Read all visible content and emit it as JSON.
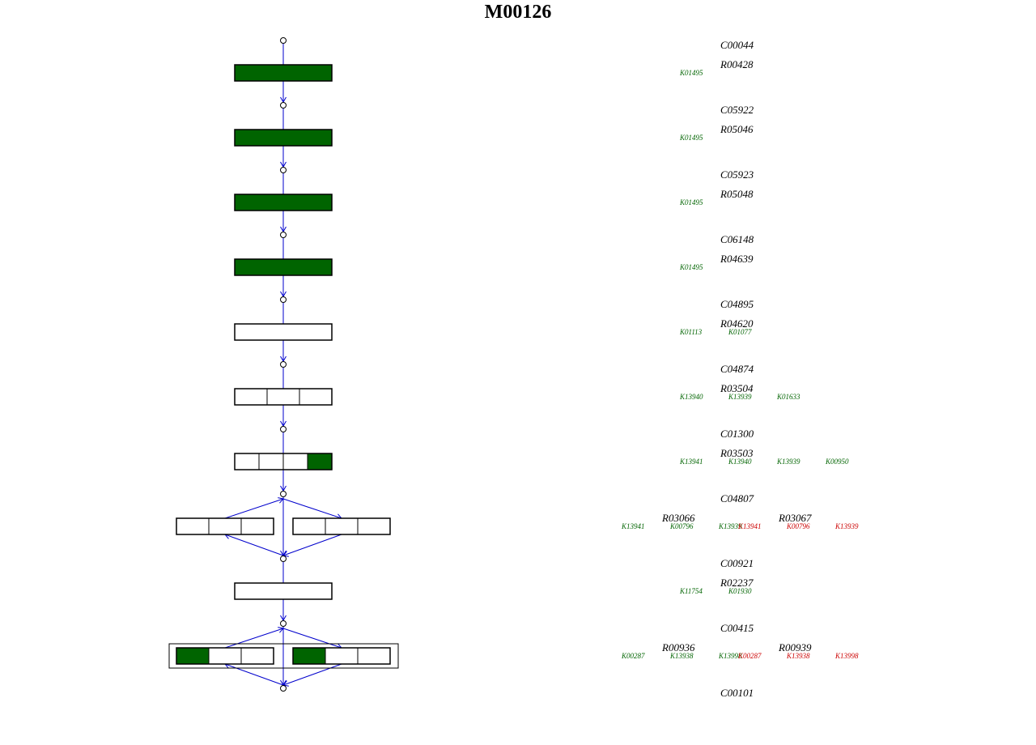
{
  "title": "M00126",
  "colors": {
    "line": "#0000cc",
    "fill_present": "#006400",
    "fill_absent": "#ffffff",
    "ko_present": "#006400",
    "ko_absent": "#cc0000",
    "text": "#000000"
  },
  "compounds": [
    "C00044",
    "C05922",
    "C05923",
    "C06148",
    "C04895",
    "C04874",
    "C01300",
    "C04807",
    "C00921",
    "C00415",
    "C00101"
  ],
  "steps": [
    {
      "reactions": [
        {
          "id": "R00428",
          "kos": [
            {
              "id": "K01495",
              "present": true
            }
          ]
        }
      ],
      "boxes": [
        {
          "cells": [
            true
          ]
        }
      ]
    },
    {
      "reactions": [
        {
          "id": "R05046",
          "kos": [
            {
              "id": "K01495",
              "present": true
            }
          ]
        }
      ],
      "boxes": [
        {
          "cells": [
            true
          ]
        }
      ]
    },
    {
      "reactions": [
        {
          "id": "R05048",
          "kos": [
            {
              "id": "K01495",
              "present": true
            }
          ]
        }
      ],
      "boxes": [
        {
          "cells": [
            true
          ]
        }
      ]
    },
    {
      "reactions": [
        {
          "id": "R04639",
          "kos": [
            {
              "id": "K01495",
              "present": true
            }
          ]
        }
      ],
      "boxes": [
        {
          "cells": [
            true
          ]
        }
      ]
    },
    {
      "reactions": [
        {
          "id": "R04620",
          "kos": [
            {
              "id": "K01113",
              "present": true
            },
            {
              "id": "K01077",
              "present": true
            }
          ]
        }
      ],
      "boxes": [
        {
          "cells": [
            false
          ]
        }
      ]
    },
    {
      "reactions": [
        {
          "id": "R03504",
          "kos": [
            {
              "id": "K13940",
              "present": true
            },
            {
              "id": "K13939",
              "present": true
            },
            {
              "id": "K01633",
              "present": true
            }
          ]
        }
      ],
      "boxes": [
        {
          "cells": [
            false,
            false,
            false
          ]
        }
      ]
    },
    {
      "reactions": [
        {
          "id": "R03503",
          "kos": [
            {
              "id": "K13941",
              "present": true
            },
            {
              "id": "K13940",
              "present": true
            },
            {
              "id": "K13939",
              "present": true
            },
            {
              "id": "K00950",
              "present": true
            }
          ]
        }
      ],
      "boxes": [
        {
          "cells": [
            false,
            false,
            false,
            true
          ]
        }
      ]
    },
    {
      "reactions": [
        {
          "id": "R03066",
          "kos": [
            {
              "id": "K13941",
              "present": true
            },
            {
              "id": "K00796",
              "present": true
            },
            {
              "id": "K13939",
              "present": true
            }
          ]
        },
        {
          "id": "R03067",
          "kos": [
            {
              "id": "K13941",
              "present": false
            },
            {
              "id": "K00796",
              "present": false
            },
            {
              "id": "K13939",
              "present": false
            }
          ]
        }
      ],
      "boxes": [
        {
          "cells": [
            false,
            false,
            false
          ]
        },
        {
          "cells": [
            false,
            false,
            false
          ]
        }
      ]
    },
    {
      "reactions": [
        {
          "id": "R02237",
          "kos": [
            {
              "id": "K11754",
              "present": true
            },
            {
              "id": "K01930",
              "present": true
            }
          ]
        }
      ],
      "boxes": [
        {
          "cells": [
            false
          ]
        }
      ]
    },
    {
      "reactions": [
        {
          "id": "R00936",
          "kos": [
            {
              "id": "K00287",
              "present": true
            },
            {
              "id": "K13938",
              "present": true
            },
            {
              "id": "K13998",
              "present": true
            }
          ]
        },
        {
          "id": "R00939",
          "kos": [
            {
              "id": "K00287",
              "present": false
            },
            {
              "id": "K13938",
              "present": false
            },
            {
              "id": "K13998",
              "present": false
            }
          ]
        }
      ],
      "boxes": [
        {
          "cells": [
            true,
            false,
            false
          ]
        },
        {
          "cells": [
            true,
            false,
            false
          ]
        }
      ]
    }
  ]
}
